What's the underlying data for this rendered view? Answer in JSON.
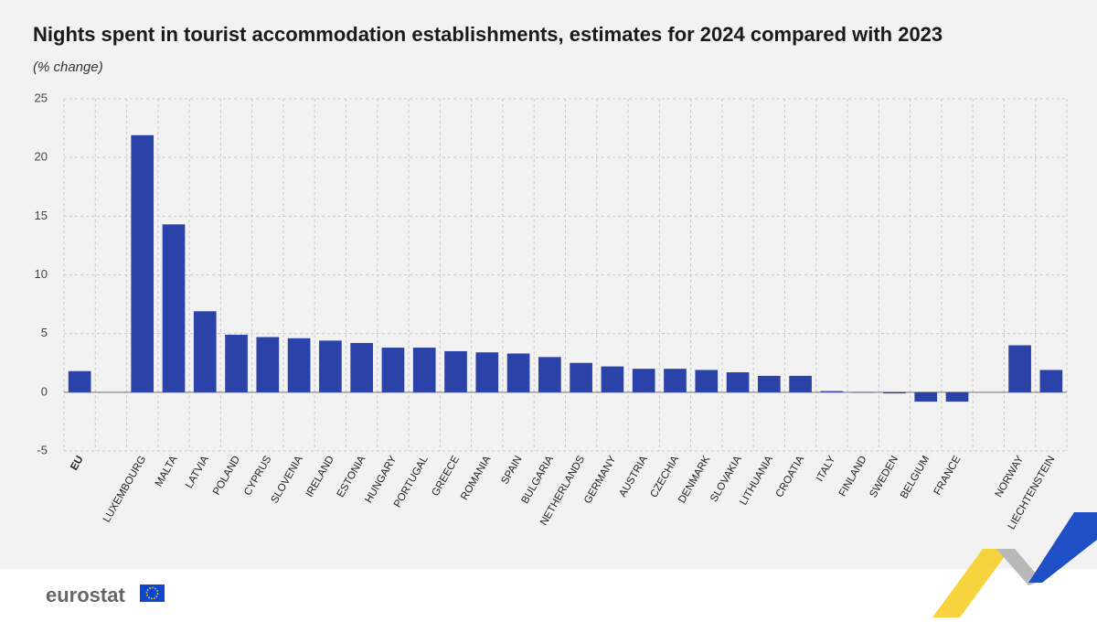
{
  "chart_data": {
    "type": "bar",
    "title": "Nights spent in tourist accommodation establishments, estimates for 2024 compared with 2023",
    "subtitle": "(% change)",
    "categories": [
      "EU",
      null,
      "LUXEMBOURG",
      "MALTA",
      "LATVIA",
      "POLAND",
      "CYPRUS",
      "SLOVENIA",
      "IRELAND",
      "ESTONIA",
      "HUNGARY",
      "PORTUGAL",
      "GREECE",
      "ROMANIA",
      "SPAIN",
      "BULGARIA",
      "NETHERLANDS",
      "GERMANY",
      "AUSTRIA",
      "CZECHIA",
      "DENMARK",
      "SLOVAKIA",
      "LITHUANIA",
      "CROATIA",
      "ITALY",
      "FINLAND",
      "SWEDEN",
      "BELGIUM",
      "FRANCE",
      null,
      "NORWAY",
      "LIECHTENSTEIN"
    ],
    "values": [
      1.8,
      null,
      21.9,
      14.3,
      6.9,
      4.9,
      4.7,
      4.6,
      4.4,
      4.2,
      3.8,
      3.8,
      3.5,
      3.4,
      3.3,
      3.0,
      2.5,
      2.2,
      2.0,
      2.0,
      1.9,
      1.7,
      1.4,
      1.4,
      0.1,
      0.0,
      -0.1,
      -0.8,
      -0.8,
      null,
      4.0,
      1.9
    ],
    "color": "#2b43a8",
    "ylim": [
      -5,
      25
    ],
    "yticks": [
      -5,
      0,
      5,
      10,
      15,
      20,
      25
    ],
    "grid": true,
    "source": "eurostat"
  }
}
